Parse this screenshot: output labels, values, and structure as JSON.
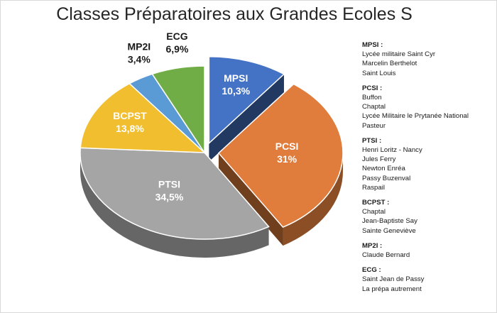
{
  "chart_data": {
    "type": "pie",
    "title": "Classes Préparatoires aux Grandes Ecoles S",
    "slices": [
      {
        "label": "MPSI",
        "value": 10.3,
        "value_label": "10,3%",
        "color": "#4472c4",
        "exploded": true
      },
      {
        "label": "PCSI",
        "value": 31,
        "value_label": "31%",
        "color": "#e07d3c",
        "exploded": true
      },
      {
        "label": "PTSI",
        "value": 34.5,
        "value_label": "34,5%",
        "color": "#a5a5a5",
        "exploded": false
      },
      {
        "label": "BCPST",
        "value": 13.8,
        "value_label": "13,8%",
        "color": "#f1be2f",
        "exploded": false
      },
      {
        "label": "MP2I",
        "value": 3.4,
        "value_label": "3,4%",
        "color": "#5b9bd5",
        "exploded": false
      },
      {
        "label": "ECG",
        "value": 6.9,
        "value_label": "6,9%",
        "color": "#70ad47",
        "exploded": false
      }
    ]
  },
  "legend": [
    {
      "title": "MPSI :",
      "schools": [
        "Lycée militaire Saint Cyr",
        "Marcelin Berthelot",
        "Saint Louis"
      ]
    },
    {
      "title": "PCSI :",
      "schools": [
        "Buffon",
        "Chaptal",
        "Lycée Militaire le Prytanée National",
        "Pasteur"
      ]
    },
    {
      "title": "PTSI :",
      "schools": [
        "Henri Loritz - Nancy",
        "Jules Ferry",
        "Newton Enréa",
        "Passy Buzenval",
        "Raspail"
      ]
    },
    {
      "title": "BCPST :",
      "schools": [
        "Chaptal",
        "Jean-Baptiste Say",
        "Sainte Geneviève"
      ]
    },
    {
      "title": "MP2I :",
      "schools": [
        "Claude Bernard"
      ]
    },
    {
      "title": "ECG :",
      "schools": [
        "Saint Jean de Passy",
        "La prépa autrement"
      ]
    }
  ]
}
